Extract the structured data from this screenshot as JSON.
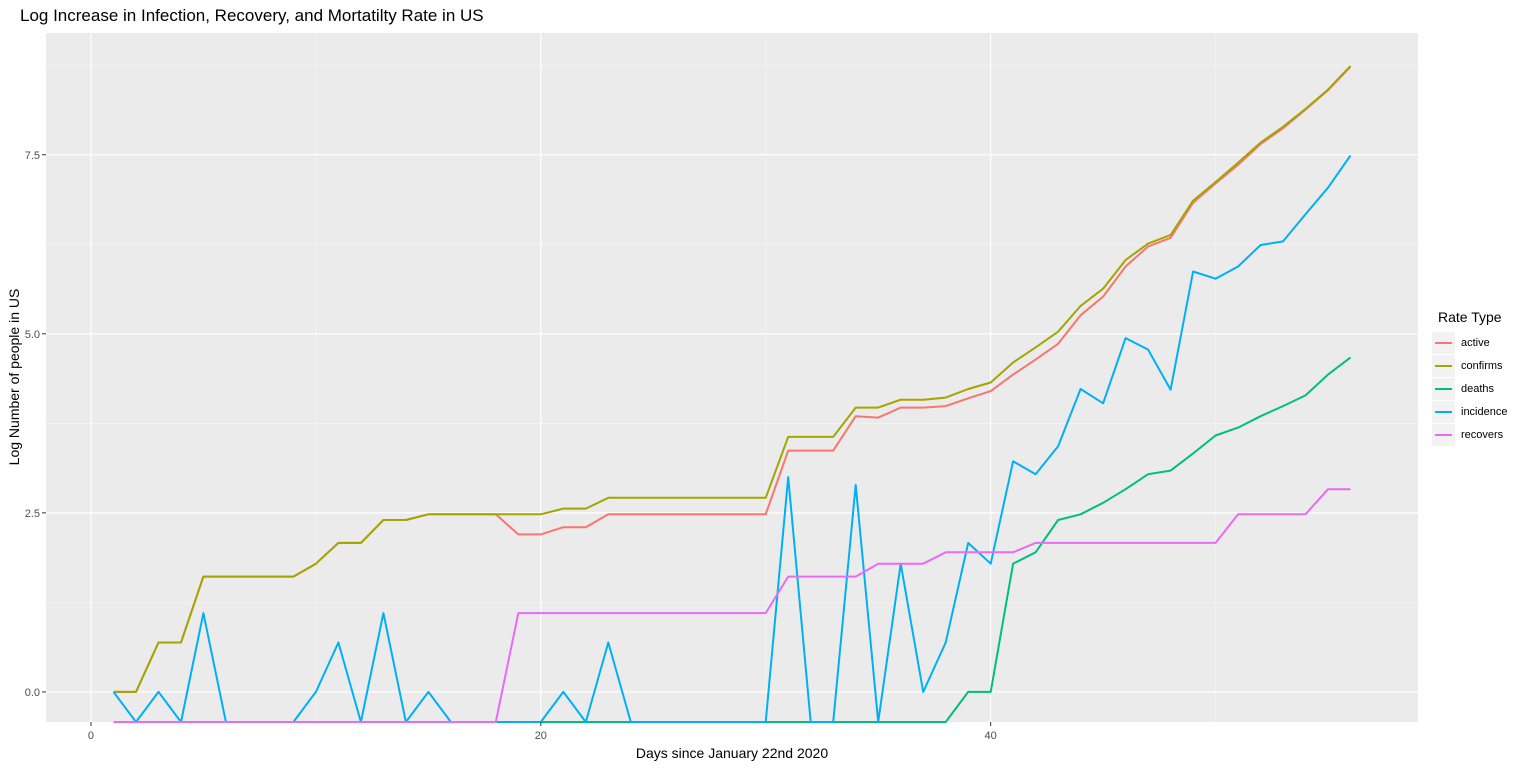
{
  "chart_data": {
    "type": "line",
    "title": "Log Increase in Infection, Recovery, and Mortatilty Rate in US",
    "xlabel": "Days since January 22nd 2020",
    "ylabel": "Log Number of people in US",
    "xlim": [
      -2,
      59
    ],
    "ylim": [
      -0.42,
      9.2
    ],
    "x_ticks": [
      0,
      20,
      40
    ],
    "x_tick_labels": [
      "0",
      "20",
      "40"
    ],
    "y_ticks": [
      0,
      2.5,
      5,
      7.5
    ],
    "y_tick_labels": [
      "0.0",
      "2.5",
      "5.0",
      "7.5"
    ],
    "grid": true,
    "legend_title": "Rate Type",
    "legend_position": "right",
    "x": [
      1,
      2,
      3,
      4,
      5,
      6,
      7,
      8,
      9,
      10,
      11,
      12,
      13,
      14,
      15,
      16,
      17,
      18,
      19,
      20,
      21,
      22,
      23,
      24,
      25,
      26,
      27,
      28,
      29,
      30,
      31,
      32,
      33,
      34,
      35,
      36,
      37,
      38,
      39,
      40,
      41,
      42,
      43,
      44,
      45,
      46,
      47,
      48,
      49,
      50,
      51,
      52,
      53,
      54,
      55,
      56
    ],
    "series": [
      {
        "name": "active",
        "color": "#F8766D",
        "values": [
          0,
          0,
          0.69,
          0.69,
          1.61,
          1.61,
          1.61,
          1.61,
          1.61,
          1.79,
          2.08,
          2.08,
          2.4,
          2.4,
          2.48,
          2.48,
          2.48,
          2.48,
          2.2,
          2.2,
          2.3,
          2.3,
          2.48,
          2.48,
          2.48,
          2.48,
          2.48,
          2.48,
          2.48,
          2.48,
          3.37,
          3.37,
          3.37,
          3.85,
          3.83,
          3.97,
          3.97,
          3.99,
          4.1,
          4.2,
          4.43,
          4.64,
          4.86,
          5.26,
          5.52,
          5.94,
          6.22,
          6.34,
          6.83,
          7.1,
          7.36,
          7.65,
          7.87,
          8.13,
          8.4,
          8.73
        ]
      },
      {
        "name": "confirms",
        "color": "#A3A500",
        "values": [
          0,
          0,
          0.69,
          0.69,
          1.61,
          1.61,
          1.61,
          1.61,
          1.61,
          1.79,
          2.08,
          2.08,
          2.4,
          2.4,
          2.48,
          2.48,
          2.48,
          2.48,
          2.48,
          2.48,
          2.56,
          2.56,
          2.71,
          2.71,
          2.71,
          2.71,
          2.71,
          2.71,
          2.71,
          2.71,
          3.56,
          3.56,
          3.56,
          3.97,
          3.97,
          4.08,
          4.08,
          4.11,
          4.23,
          4.32,
          4.6,
          4.81,
          5.03,
          5.39,
          5.63,
          6.03,
          6.26,
          6.38,
          6.86,
          7.12,
          7.39,
          7.67,
          7.89,
          8.14,
          8.41,
          8.74
        ]
      },
      {
        "name": "deaths",
        "color": "#00BF7D",
        "values": [
          null,
          null,
          null,
          null,
          null,
          null,
          null,
          null,
          null,
          null,
          null,
          null,
          null,
          null,
          null,
          null,
          null,
          null,
          null,
          -0.42,
          -0.42,
          -0.42,
          -0.42,
          -0.42,
          -0.42,
          -0.42,
          -0.42,
          -0.42,
          -0.42,
          -0.42,
          -0.42,
          -0.42,
          -0.42,
          -0.42,
          -0.42,
          -0.42,
          -0.42,
          -0.42,
          0,
          0,
          1.79,
          1.95,
          2.4,
          2.48,
          2.64,
          2.83,
          3.04,
          3.09,
          3.33,
          3.58,
          3.69,
          3.85,
          3.99,
          4.14,
          4.43,
          4.67
        ]
      },
      {
        "name": "incidence",
        "color": "#00B0F6",
        "values": [
          0,
          -0.42,
          0,
          -0.42,
          1.1,
          -0.42,
          -0.42,
          -0.42,
          -0.42,
          0,
          0.69,
          -0.42,
          1.1,
          -0.42,
          0,
          -0.42,
          -0.42,
          -0.42,
          -0.42,
          -0.42,
          0,
          -0.42,
          0.69,
          -0.42,
          -0.42,
          -0.42,
          -0.42,
          -0.42,
          -0.42,
          -0.42,
          3.0,
          -0.42,
          -0.42,
          2.89,
          -0.42,
          1.79,
          0,
          0.69,
          2.08,
          1.79,
          3.22,
          3.04,
          3.43,
          4.23,
          4.03,
          4.94,
          4.78,
          4.22,
          5.87,
          5.77,
          5.94,
          6.24,
          6.29,
          6.67,
          7.04,
          7.49
        ]
      },
      {
        "name": "recovers",
        "color": "#E76BF3",
        "values": [
          -0.42,
          -0.42,
          -0.42,
          -0.42,
          -0.42,
          -0.42,
          -0.42,
          -0.42,
          -0.42,
          -0.42,
          -0.42,
          -0.42,
          -0.42,
          -0.42,
          -0.42,
          -0.42,
          -0.42,
          -0.42,
          1.1,
          1.1,
          1.1,
          1.1,
          1.1,
          1.1,
          1.1,
          1.1,
          1.1,
          1.1,
          1.1,
          1.1,
          1.61,
          1.61,
          1.61,
          1.61,
          1.79,
          1.79,
          1.79,
          1.95,
          1.95,
          1.95,
          1.95,
          2.08,
          2.08,
          2.08,
          2.08,
          2.08,
          2.08,
          2.08,
          2.08,
          2.08,
          2.48,
          2.48,
          2.48,
          2.48,
          2.83,
          2.83
        ]
      }
    ]
  }
}
